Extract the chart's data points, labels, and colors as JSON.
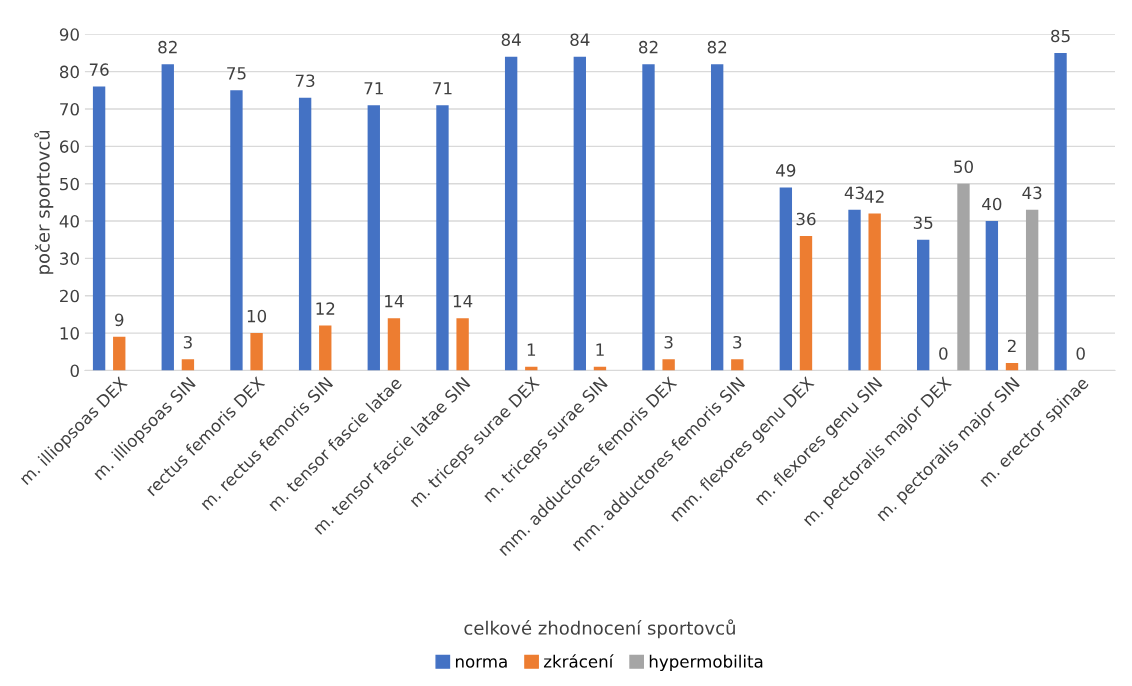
{
  "chart_data": {
    "type": "bar",
    "xlabel": "celkové zhodnocení sportovců",
    "ylabel": "počer sportovců",
    "categories": [
      "m. illiopsoas DEX",
      "m. illiopsoas SIN",
      "rectus femoris DEX",
      "m. rectus femoris SIN",
      "m. tensor fascie latae",
      "m. tensor fascie latae SIN",
      "m. triceps surae DEX",
      "m. triceps surae SIN",
      "mm. adductores femoris DEX",
      "mm. adductores femoris SIN",
      "mm. flexores genu DEX",
      "m. flexores genu SIN",
      "m. pectoralis major DEX",
      "m. pectoralis major SIN",
      "m. erector spinae"
    ],
    "series": [
      {
        "name": "norma",
        "color": "#4472c4",
        "values": [
          76,
          82,
          75,
          73,
          71,
          71,
          84,
          84,
          82,
          82,
          49,
          43,
          35,
          40,
          85
        ]
      },
      {
        "name": "zkrácení",
        "color": "#ed7d31",
        "values": [
          9,
          3,
          10,
          12,
          14,
          14,
          1,
          1,
          3,
          3,
          36,
          42,
          0,
          2,
          0
        ]
      },
      {
        "name": "hypermobilita",
        "color": "#a5a5a5",
        "values": [
          null,
          null,
          null,
          null,
          null,
          null,
          null,
          null,
          null,
          null,
          null,
          null,
          50,
          43,
          null
        ]
      }
    ],
    "ylim": [
      0,
      90
    ],
    "yticks": [
      0,
      10,
      20,
      30,
      40,
      50,
      60,
      70,
      80,
      90
    ],
    "grid": "y",
    "legend": "bottom",
    "data_labels": true
  }
}
